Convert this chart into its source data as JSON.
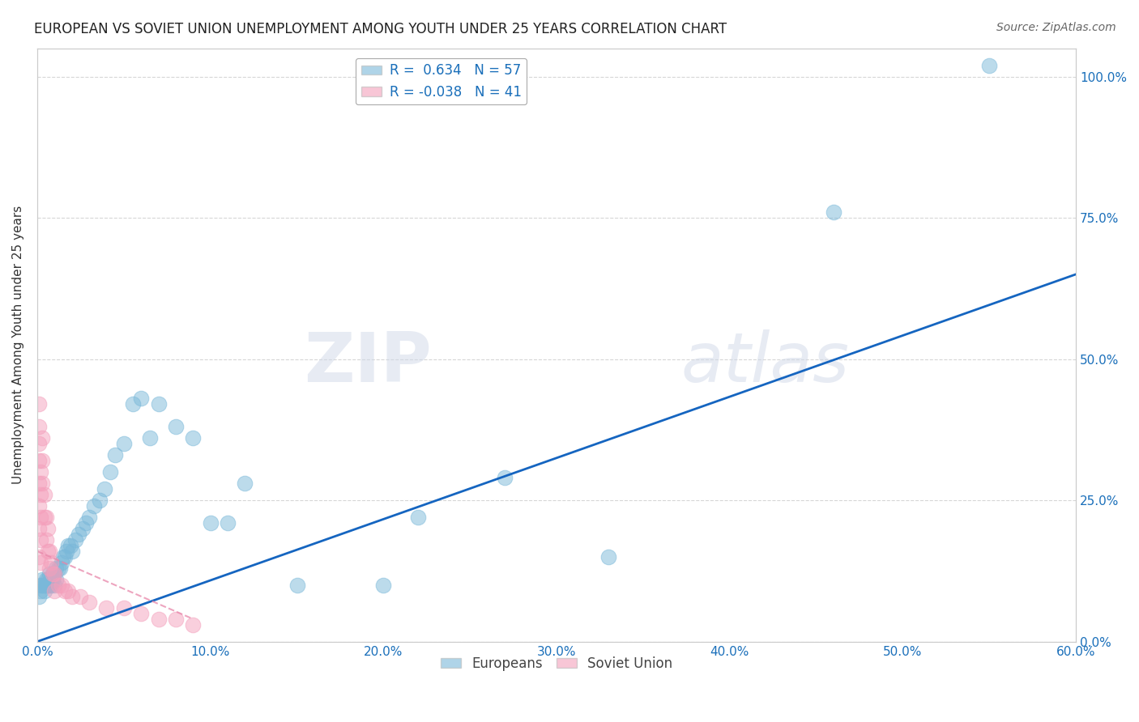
{
  "title": "EUROPEAN VS SOVIET UNION UNEMPLOYMENT AMONG YOUTH UNDER 25 YEARS CORRELATION CHART",
  "source": "Source: ZipAtlas.com",
  "ylabel": "Unemployment Among Youth under 25 years",
  "xlim": [
    0.0,
    0.6
  ],
  "ylim": [
    0.0,
    1.05
  ],
  "xticks": [
    0.0,
    0.1,
    0.2,
    0.3,
    0.4,
    0.5,
    0.6
  ],
  "xticklabels": [
    "0.0%",
    "10.0%",
    "20.0%",
    "30.0%",
    "40.0%",
    "50.0%",
    "60.0%"
  ],
  "yticks": [
    0.0,
    0.25,
    0.5,
    0.75,
    1.0
  ],
  "yticklabels": [
    "0.0%",
    "25.0%",
    "50.0%",
    "75.0%",
    "100.0%"
  ],
  "europe_R": 0.634,
  "europe_N": 57,
  "soviet_R": -0.038,
  "soviet_N": 41,
  "europe_color": "#7ab8d9",
  "soviet_color": "#f4a0bc",
  "europe_trend_color": "#1565c0",
  "soviet_trend_color": "#e887aa",
  "watermark_zip": "ZIP",
  "watermark_atlas": "atlas",
  "background_color": "#ffffff",
  "europe_x": [
    0.001,
    0.002,
    0.002,
    0.003,
    0.003,
    0.004,
    0.004,
    0.005,
    0.005,
    0.006,
    0.006,
    0.007,
    0.007,
    0.008,
    0.008,
    0.009,
    0.009,
    0.01,
    0.01,
    0.011,
    0.011,
    0.012,
    0.013,
    0.014,
    0.015,
    0.016,
    0.017,
    0.018,
    0.019,
    0.02,
    0.022,
    0.024,
    0.026,
    0.028,
    0.03,
    0.033,
    0.036,
    0.039,
    0.042,
    0.045,
    0.05,
    0.055,
    0.06,
    0.065,
    0.07,
    0.08,
    0.09,
    0.1,
    0.11,
    0.12,
    0.15,
    0.2,
    0.22,
    0.27,
    0.33,
    0.46,
    0.55
  ],
  "europe_y": [
    0.08,
    0.09,
    0.1,
    0.1,
    0.11,
    0.09,
    0.1,
    0.1,
    0.11,
    0.1,
    0.11,
    0.1,
    0.12,
    0.11,
    0.1,
    0.12,
    0.11,
    0.1,
    0.12,
    0.11,
    0.13,
    0.13,
    0.13,
    0.14,
    0.15,
    0.15,
    0.16,
    0.17,
    0.17,
    0.16,
    0.18,
    0.19,
    0.2,
    0.21,
    0.22,
    0.24,
    0.25,
    0.27,
    0.3,
    0.33,
    0.35,
    0.42,
    0.43,
    0.36,
    0.42,
    0.38,
    0.36,
    0.21,
    0.21,
    0.28,
    0.1,
    0.1,
    0.22,
    0.29,
    0.15,
    0.76,
    1.02
  ],
  "soviet_x": [
    0.001,
    0.001,
    0.001,
    0.001,
    0.001,
    0.001,
    0.001,
    0.001,
    0.002,
    0.002,
    0.002,
    0.002,
    0.002,
    0.003,
    0.003,
    0.003,
    0.004,
    0.004,
    0.005,
    0.005,
    0.006,
    0.006,
    0.007,
    0.007,
    0.008,
    0.009,
    0.01,
    0.01,
    0.012,
    0.014,
    0.016,
    0.018,
    0.02,
    0.025,
    0.03,
    0.04,
    0.05,
    0.06,
    0.07,
    0.08,
    0.09
  ],
  "soviet_y": [
    0.42,
    0.38,
    0.35,
    0.32,
    0.28,
    0.24,
    0.2,
    0.15,
    0.3,
    0.26,
    0.22,
    0.18,
    0.14,
    0.36,
    0.32,
    0.28,
    0.26,
    0.22,
    0.22,
    0.18,
    0.2,
    0.16,
    0.16,
    0.13,
    0.14,
    0.12,
    0.12,
    0.09,
    0.1,
    0.1,
    0.09,
    0.09,
    0.08,
    0.08,
    0.07,
    0.06,
    0.06,
    0.05,
    0.04,
    0.04,
    0.03
  ],
  "europe_trend_x": [
    0.0,
    0.6
  ],
  "europe_trend_y": [
    0.0,
    0.65
  ],
  "soviet_trend_x": [
    0.0,
    0.09
  ],
  "soviet_trend_y": [
    0.16,
    0.04
  ]
}
